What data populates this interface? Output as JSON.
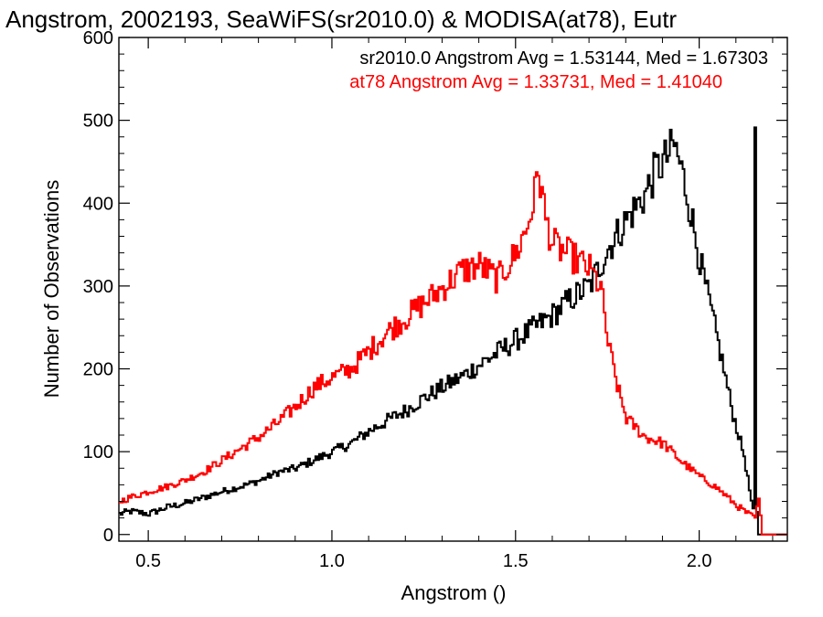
{
  "chart_data": {
    "type": "histogram",
    "title": "Angstrom, 2002193, SeaWiFS(sr2010.0) & MODISA(at78), Eutr",
    "xlabel": "Angstrom ()",
    "ylabel": "Number of Observations",
    "xlim": [
      0.42,
      2.24
    ],
    "ylim": [
      -8,
      600
    ],
    "x_ticks": [
      0.5,
      1.0,
      1.5,
      2.0
    ],
    "x_tick_labels": [
      "0.5",
      "1.0",
      "1.5",
      "2.0"
    ],
    "y_ticks": [
      0,
      100,
      200,
      300,
      400,
      500,
      600
    ],
    "y_tick_labels": [
      "0",
      "100",
      "200",
      "300",
      "400",
      "500",
      "600"
    ],
    "annotations": [
      {
        "text": "sr2010.0 Angstrom Avg = 1.53144, Med = 1.67303",
        "color": "#000000"
      },
      {
        "text": "at78 Angstrom Avg = 1.33731, Med = 1.41040",
        "color": "#ff0000"
      }
    ],
    "series": [
      {
        "color": "#000000",
        "x": [
          0.42,
          0.45,
          0.5,
          0.55,
          0.6,
          0.65,
          0.7,
          0.75,
          0.8,
          0.85,
          0.9,
          0.95,
          1.0,
          1.05,
          1.1,
          1.15,
          1.2,
          1.25,
          1.3,
          1.35,
          1.4,
          1.45,
          1.5,
          1.55,
          1.6,
          1.65,
          1.7,
          1.75,
          1.8,
          1.85,
          1.88,
          1.91,
          1.93,
          1.95,
          1.97,
          2.0,
          2.03,
          2.06,
          2.09,
          2.12,
          2.14,
          2.148,
          2.15,
          2.152,
          2.16,
          2.17,
          2.24
        ],
        "values": [
          25,
          28,
          25,
          33,
          38,
          45,
          52,
          58,
          65,
          75,
          80,
          90,
          100,
          110,
          125,
          138,
          150,
          165,
          178,
          190,
          205,
          220,
          235,
          250,
          265,
          285,
          300,
          345,
          380,
          410,
          440,
          455,
          470,
          440,
          400,
          330,
          270,
          210,
          145,
          95,
          40,
          20,
          475,
          40,
          0,
          0,
          0
        ]
      },
      {
        "color": "#ff0000",
        "x": [
          0.42,
          0.45,
          0.5,
          0.55,
          0.6,
          0.65,
          0.7,
          0.75,
          0.8,
          0.85,
          0.9,
          0.95,
          1.0,
          1.05,
          1.1,
          1.15,
          1.2,
          1.25,
          1.3,
          1.35,
          1.4,
          1.45,
          1.5,
          1.53,
          1.55,
          1.56,
          1.58,
          1.6,
          1.65,
          1.7,
          1.73,
          1.75,
          1.78,
          1.8,
          1.85,
          1.9,
          1.95,
          2.0,
          2.05,
          2.1,
          2.13,
          2.15,
          2.16,
          2.17,
          2.24
        ],
        "values": [
          40,
          45,
          52,
          58,
          66,
          76,
          90,
          104,
          118,
          135,
          155,
          178,
          190,
          200,
          222,
          245,
          262,
          280,
          298,
          318,
          325,
          308,
          340,
          372,
          410,
          442,
          380,
          350,
          336,
          320,
          298,
          230,
          170,
          140,
          118,
          110,
          88,
          70,
          55,
          35,
          25,
          20,
          42,
          0,
          0
        ]
      }
    ]
  }
}
